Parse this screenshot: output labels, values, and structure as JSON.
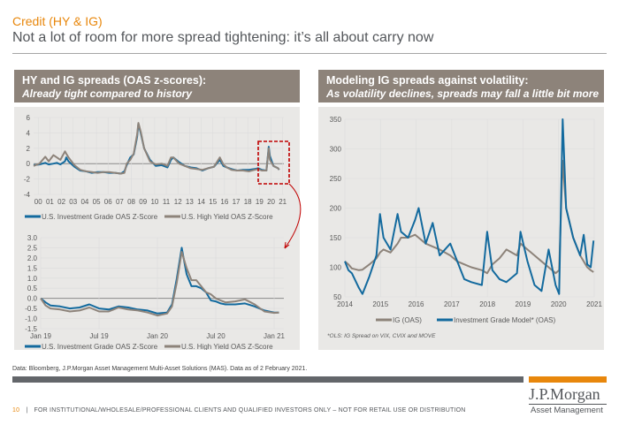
{
  "header": {
    "kicker": "Credit (HY & IG)",
    "title": "Not a lot of room for more spread tightening: it’s all about carry now"
  },
  "left_panel": {
    "heading": "HY and IG spreads (OAS z-scores):",
    "subheading": "Already tight compared to history"
  },
  "right_panel": {
    "heading": "Modeling IG spreads against volatility:",
    "subheading": "As volatility declines, spreads may fall a little bit more",
    "footnote": "*OLS: IG Spread on VIX, CVIX and  MOVE"
  },
  "colors": {
    "ig_blue": "#136a9e",
    "hy_grey": "#8d837a",
    "accent_orange": "#e8870c",
    "highlight_red": "#c00000"
  },
  "chart_data": [
    {
      "type": "line",
      "title": "HY and IG spreads (OAS z-scores), 2000-2021",
      "xlabel": "",
      "ylabel": "",
      "x_ticks": [
        "00",
        "01",
        "02",
        "03",
        "04",
        "05",
        "06",
        "07",
        "08",
        "09",
        "10",
        "11",
        "12",
        "13",
        "14",
        "15",
        "16",
        "17",
        "18",
        "19",
        "20",
        "21"
      ],
      "y_ticks": [
        "6",
        "4",
        "2",
        "0",
        "-2",
        "-4"
      ],
      "xlim": [
        2000,
        2021.5
      ],
      "ylim": [
        -4,
        6
      ],
      "grid": true,
      "legend": "bottom",
      "highlight_box": "2019-2021 (zoomed below)",
      "x": [
        2000,
        2000.5,
        2001,
        2001.3,
        2001.7,
        2002,
        2002.3,
        2002.7,
        2002.8,
        2003,
        2003.5,
        2004,
        2004.5,
        2005,
        2005.5,
        2006,
        2006.5,
        2007,
        2007.5,
        2007.8,
        2008,
        2008.3,
        2008.6,
        2008.9,
        2009,
        2009.2,
        2009.5,
        2010,
        2010.5,
        2011,
        2011.5,
        2011.8,
        2012,
        2012.5,
        2013,
        2013.5,
        2014,
        2014.5,
        2015,
        2015.5,
        2016,
        2016.3,
        2016.6,
        2017,
        2017.5,
        2018,
        2018.5,
        2019,
        2019.3,
        2019.6,
        2020,
        2020.2,
        2020.3,
        2020.6,
        2021,
        2021.1
      ],
      "series": [
        {
          "name": "U.S. Investment Grade OAS Z-Score",
          "values": [
            -0.2,
            -0.1,
            0.1,
            -0.1,
            0.0,
            0.1,
            -0.1,
            0.3,
            0.8,
            0.3,
            -0.4,
            -0.9,
            -1.0,
            -1.2,
            -1.1,
            -1.1,
            -1.2,
            -1.2,
            -1.3,
            -1.0,
            -0.2,
            0.8,
            1.2,
            3.5,
            5.2,
            4.0,
            2.0,
            0.5,
            -0.3,
            -0.2,
            -0.5,
            0.5,
            0.8,
            0.2,
            -0.3,
            -0.5,
            -0.6,
            -0.9,
            -0.6,
            -0.4,
            0.5,
            -0.3,
            -0.5,
            -0.7,
            -0.9,
            -0.8,
            -0.8,
            -0.7,
            -0.6,
            -0.8,
            -0.9,
            2.2,
            1.0,
            -0.3,
            -0.6,
            -0.8
          ]
        },
        {
          "name": "U.S. High Yield OAS Z-Score",
          "values": [
            -0.3,
            0.0,
            0.9,
            0.3,
            1.1,
            0.8,
            0.5,
            1.6,
            1.3,
            0.8,
            -0.2,
            -0.8,
            -1.0,
            -1.1,
            -1.2,
            -1.1,
            -1.1,
            -1.2,
            -1.3,
            -1.2,
            0.0,
            0.5,
            1.3,
            3.8,
            5.3,
            4.2,
            2.0,
            0.3,
            -0.1,
            0.0,
            -0.3,
            0.8,
            0.8,
            0.0,
            -0.3,
            -0.6,
            -0.7,
            -0.8,
            -0.6,
            -0.4,
            0.8,
            -0.1,
            -0.5,
            -0.8,
            -0.9,
            -0.9,
            -1.0,
            -0.8,
            -0.7,
            -0.9,
            -0.9,
            2.0,
            0.5,
            -0.3,
            -0.6,
            -0.8
          ]
        }
      ]
    },
    {
      "type": "line",
      "title": "HY and IG spreads (OAS z-scores), Jan 2019 - Jan 2021",
      "xlabel": "",
      "ylabel": "",
      "x_ticks": [
        "Jan 19",
        "Jul 19",
        "Jan 20",
        "Jul 20",
        "Jan 21"
      ],
      "y_ticks": [
        "3.0",
        "2.5",
        "2.0",
        "1.5",
        "1.0",
        "0.5",
        "0.0",
        "-0.5",
        "-1.0",
        "-1.5"
      ],
      "xlim": [
        0,
        25
      ],
      "ylim": [
        -1.5,
        3.0
      ],
      "grid": true,
      "legend": "bottom",
      "x": [
        0,
        0.5,
        1,
        2,
        3,
        4,
        5,
        6,
        7,
        8,
        9,
        10,
        11,
        12,
        13,
        13.5,
        14,
        14.5,
        15,
        15.5,
        16,
        16.5,
        17,
        17.5,
        18,
        18.5,
        19,
        20,
        21,
        22,
        23,
        24,
        24.5
      ],
      "series": [
        {
          "name": "U.S. Investment Grade OAS Z-Score",
          "values": [
            0.0,
            -0.2,
            -0.35,
            -0.4,
            -0.5,
            -0.45,
            -0.3,
            -0.5,
            -0.55,
            -0.4,
            -0.45,
            -0.55,
            -0.6,
            -0.75,
            -0.7,
            -0.3,
            1.0,
            2.5,
            1.2,
            0.6,
            0.6,
            0.5,
            0.3,
            -0.1,
            -0.15,
            -0.25,
            -0.3,
            -0.3,
            -0.25,
            -0.4,
            -0.6,
            -0.7,
            -0.7
          ]
        },
        {
          "name": "U.S. High Yield OAS Z-Score",
          "values": [
            0.0,
            -0.35,
            -0.5,
            -0.55,
            -0.65,
            -0.6,
            -0.45,
            -0.65,
            -0.65,
            -0.45,
            -0.55,
            -0.6,
            -0.7,
            -0.85,
            -0.75,
            -0.4,
            0.8,
            2.3,
            1.5,
            0.9,
            0.9,
            0.6,
            0.3,
            0.2,
            0.0,
            -0.1,
            -0.2,
            -0.15,
            -0.05,
            -0.3,
            -0.65,
            -0.72,
            -0.7
          ]
        }
      ]
    },
    {
      "type": "line",
      "title": "Modeling IG spreads against volatility",
      "xlabel": "",
      "ylabel": "",
      "x_ticks": [
        "2014",
        "2015",
        "2016",
        "2017",
        "2018",
        "2019",
        "2020",
        "2021"
      ],
      "y_ticks": [
        "350",
        "300",
        "250",
        "200",
        "150",
        "100",
        "50"
      ],
      "xlim": [
        2014,
        2021.1
      ],
      "ylim": [
        50,
        350
      ],
      "grid": true,
      "legend": "bottom",
      "x": [
        2014,
        2014.1,
        2014.2,
        2014.4,
        2014.5,
        2014.7,
        2014.9,
        2015,
        2015.1,
        2015.3,
        2015.5,
        2015.6,
        2015.8,
        2016,
        2016.1,
        2016.3,
        2016.5,
        2016.7,
        2017,
        2017.2,
        2017.4,
        2017.6,
        2017.9,
        2018.05,
        2018.2,
        2018.4,
        2018.6,
        2018.9,
        2019,
        2019.2,
        2019.4,
        2019.6,
        2019.8,
        2020,
        2020.1,
        2020.2,
        2020.3,
        2020.5,
        2020.7,
        2020.8,
        2020.9,
        2021,
        2021.08
      ],
      "series": [
        {
          "name": "IG (OAS)",
          "values": [
            110,
            105,
            98,
            95,
            96,
            105,
            115,
            125,
            130,
            125,
            140,
            150,
            150,
            155,
            150,
            140,
            135,
            130,
            120,
            110,
            105,
            100,
            95,
            90,
            105,
            115,
            130,
            120,
            140,
            130,
            120,
            110,
            100,
            90,
            95,
            280,
            200,
            150,
            120,
            110,
            100,
            95,
            92
          ]
        },
        {
          "name": "Investment Grade Model* (OAS)",
          "values": [
            110,
            95,
            90,
            65,
            55,
            85,
            120,
            190,
            150,
            130,
            190,
            160,
            150,
            180,
            200,
            140,
            175,
            120,
            140,
            110,
            80,
            75,
            70,
            160,
            95,
            80,
            75,
            90,
            160,
            110,
            70,
            60,
            130,
            70,
            55,
            350,
            200,
            150,
            120,
            155,
            105,
            100,
            145
          ]
        }
      ]
    }
  ],
  "footer": {
    "source": "Data: Bloomberg, J.P.Morgan Asset Management Multi-Asset Solutions (MAS). Data as of 2 February 2021.",
    "page_number": "10",
    "separator": "|",
    "disclaimer": "FOR INSTITUTIONAL/WHOLESALE/PROFESSIONAL CLIENTS AND QUALIFIED INVESTORS ONLY – NOT FOR RETAIL USE OR DISTRIBUTION",
    "logo_main": "J.P.Morgan",
    "logo_sub": "Asset Management"
  }
}
